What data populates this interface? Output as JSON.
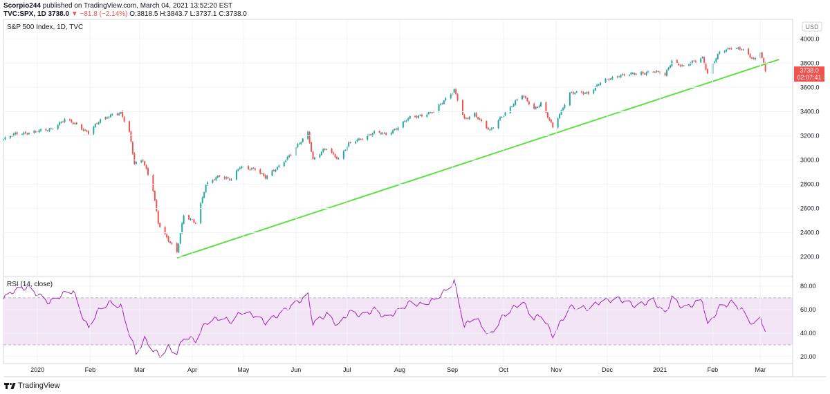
{
  "header": {
    "author": "Scorpio244",
    "published_text": "published on TradingView.com, March 04, 2021 13:52:20 EST",
    "symbol": "TVC:SPX, 1D",
    "last": "3738.0",
    "arrow": "▼",
    "change": "−81.8 (−2.14%)",
    "o_label": "O:",
    "o": "3818.5",
    "h_label": "H:",
    "h": "3843.7",
    "l_label": "L:",
    "l": "3737.1",
    "c_label": "C:",
    "c": "3738.0"
  },
  "main_title": "S&P 500 Index, 1D, TVC",
  "rsi_title": "RSI (14, close)",
  "currency": "USD",
  "price_tag": {
    "value": "3738.0",
    "countdown": "02:07:41"
  },
  "footer": {
    "brand": "TradingView"
  },
  "colors": {
    "up": "#26a69a",
    "down": "#ef5350",
    "trendline": "#5ce042",
    "rsi_line": "#9c27b0",
    "rsi_band": "#f3e5f5"
  },
  "chart_data": [
    {
      "type": "candlestick",
      "title": "S&P 500 Index, 1D, TVC",
      "ylim": [
        2050,
        4150
      ],
      "y_ticks": [
        2200,
        2400,
        2600,
        2800,
        3000,
        3200,
        3400,
        3600,
        3800,
        4000
      ],
      "y_tick_labels": [
        "2200.0",
        "2400.0",
        "2600.0",
        "2800.0",
        "3000.0",
        "3200.0",
        "3400.0",
        "3600.0",
        "3800.0",
        "4000.0"
      ],
      "x_tick_labels": [
        "2020",
        "Feb",
        "Mar",
        "Apr",
        "May",
        "Jun",
        "Jul",
        "Aug",
        "Sep",
        "Oct",
        "Nov",
        "Dec",
        "2021",
        "Feb",
        "Mar"
      ],
      "x_tick_dates": [
        "2020-01-01",
        "2020-02-01",
        "2020-03-01",
        "2020-04-01",
        "2020-05-01",
        "2020-06-01",
        "2020-07-01",
        "2020-08-01",
        "2020-09-01",
        "2020-10-01",
        "2020-11-01",
        "2020-12-01",
        "2021-01-01",
        "2021-02-01",
        "2021-03-01"
      ],
      "xlim_dates": [
        "2019-12-12",
        "2021-03-20"
      ],
      "close_path": [
        [
          "2019-12-12",
          3168
        ],
        [
          "2019-12-20",
          3221
        ],
        [
          "2019-12-31",
          3231
        ],
        [
          "2020-01-08",
          3253
        ],
        [
          "2020-01-17",
          3330
        ],
        [
          "2020-01-24",
          3295
        ],
        [
          "2020-01-31",
          3225
        ],
        [
          "2020-02-07",
          3328
        ],
        [
          "2020-02-14",
          3380
        ],
        [
          "2020-02-19",
          3386
        ],
        [
          "2020-02-24",
          3225
        ],
        [
          "2020-02-27",
          2979
        ],
        [
          "2020-03-03",
          3003
        ],
        [
          "2020-03-09",
          2746
        ],
        [
          "2020-03-12",
          2480
        ],
        [
          "2020-03-16",
          2386
        ],
        [
          "2020-03-23",
          2237
        ],
        [
          "2020-03-27",
          2541
        ],
        [
          "2020-04-03",
          2489
        ],
        [
          "2020-04-09",
          2790
        ],
        [
          "2020-04-17",
          2875
        ],
        [
          "2020-04-24",
          2837
        ],
        [
          "2020-04-29",
          2940
        ],
        [
          "2020-05-08",
          2930
        ],
        [
          "2020-05-14",
          2852
        ],
        [
          "2020-05-22",
          2955
        ],
        [
          "2020-05-29",
          3044
        ],
        [
          "2020-06-08",
          3232
        ],
        [
          "2020-06-11",
          3002
        ],
        [
          "2020-06-19",
          3098
        ],
        [
          "2020-06-26",
          3009
        ],
        [
          "2020-07-02",
          3130
        ],
        [
          "2020-07-10",
          3185
        ],
        [
          "2020-07-17",
          3224
        ],
        [
          "2020-07-24",
          3215
        ],
        [
          "2020-07-31",
          3271
        ],
        [
          "2020-08-07",
          3351
        ],
        [
          "2020-08-14",
          3373
        ],
        [
          "2020-08-21",
          3397
        ],
        [
          "2020-08-28",
          3508
        ],
        [
          "2020-09-02",
          3580
        ],
        [
          "2020-09-08",
          3331
        ],
        [
          "2020-09-14",
          3383
        ],
        [
          "2020-09-23",
          3237
        ],
        [
          "2020-10-01",
          3380
        ],
        [
          "2020-10-12",
          3534
        ],
        [
          "2020-10-19",
          3427
        ],
        [
          "2020-10-23",
          3465
        ],
        [
          "2020-10-30",
          3270
        ],
        [
          "2020-11-09",
          3550
        ],
        [
          "2020-11-20",
          3557
        ],
        [
          "2020-11-27",
          3638
        ],
        [
          "2020-12-08",
          3702
        ],
        [
          "2020-12-18",
          3709
        ],
        [
          "2020-12-28",
          3735
        ],
        [
          "2021-01-04",
          3700
        ],
        [
          "2021-01-08",
          3824
        ],
        [
          "2021-01-15",
          3768
        ],
        [
          "2021-01-26",
          3849
        ],
        [
          "2021-01-29",
          3714
        ],
        [
          "2021-02-05",
          3886
        ],
        [
          "2021-02-12",
          3934
        ],
        [
          "2021-02-18",
          3913
        ],
        [
          "2021-02-25",
          3829
        ],
        [
          "2021-03-01",
          3901
        ],
        [
          "2021-03-04",
          3738
        ]
      ],
      "trendline": {
        "start": [
          "2020-03-23",
          2192
        ],
        "end": [
          "2021-03-12",
          3830
        ]
      },
      "last_price": 3738.0
    },
    {
      "type": "line",
      "title": "RSI (14, close)",
      "ylim": [
        14,
        87
      ],
      "y_ticks": [
        20,
        40,
        60,
        80
      ],
      "y_tick_labels": [
        "20.00",
        "40.00",
        "60.00",
        "80.00"
      ],
      "band": [
        30,
        70
      ],
      "series": [
        {
          "points": [
            [
              "2019-12-12",
              69
            ],
            [
              "2019-12-18",
              76
            ],
            [
              "2019-12-26",
              79
            ],
            [
              "2020-01-02",
              72
            ],
            [
              "2020-01-08",
              66
            ],
            [
              "2020-01-17",
              74
            ],
            [
              "2020-01-22",
              76
            ],
            [
              "2020-01-27",
              56
            ],
            [
              "2020-01-31",
              44
            ],
            [
              "2020-02-05",
              58
            ],
            [
              "2020-02-12",
              66
            ],
            [
              "2020-02-19",
              63
            ],
            [
              "2020-02-24",
              40
            ],
            [
              "2020-02-28",
              23
            ],
            [
              "2020-03-04",
              35
            ],
            [
              "2020-03-09",
              26
            ],
            [
              "2020-03-13",
              21
            ],
            [
              "2020-03-18",
              28
            ],
            [
              "2020-03-23",
              23
            ],
            [
              "2020-03-27",
              37
            ],
            [
              "2020-04-03",
              34
            ],
            [
              "2020-04-09",
              49
            ],
            [
              "2020-04-17",
              53
            ],
            [
              "2020-04-24",
              50
            ],
            [
              "2020-04-30",
              58
            ],
            [
              "2020-05-08",
              55
            ],
            [
              "2020-05-14",
              49
            ],
            [
              "2020-05-22",
              56
            ],
            [
              "2020-05-29",
              63
            ],
            [
              "2020-06-08",
              72
            ],
            [
              "2020-06-11",
              48
            ],
            [
              "2020-06-19",
              56
            ],
            [
              "2020-06-26",
              46
            ],
            [
              "2020-07-02",
              58
            ],
            [
              "2020-07-10",
              55
            ],
            [
              "2020-07-17",
              60
            ],
            [
              "2020-07-24",
              53
            ],
            [
              "2020-07-31",
              59
            ],
            [
              "2020-08-07",
              66
            ],
            [
              "2020-08-14",
              64
            ],
            [
              "2020-08-21",
              68
            ],
            [
              "2020-08-28",
              76
            ],
            [
              "2020-09-02",
              84
            ],
            [
              "2020-09-08",
              46
            ],
            [
              "2020-09-14",
              54
            ],
            [
              "2020-09-23",
              38
            ],
            [
              "2020-10-01",
              55
            ],
            [
              "2020-10-12",
              67
            ],
            [
              "2020-10-19",
              52
            ],
            [
              "2020-10-23",
              56
            ],
            [
              "2020-10-30",
              38
            ],
            [
              "2020-11-09",
              62
            ],
            [
              "2020-11-20",
              61
            ],
            [
              "2020-11-27",
              67
            ],
            [
              "2020-12-08",
              69
            ],
            [
              "2020-12-18",
              63
            ],
            [
              "2020-12-28",
              68
            ],
            [
              "2021-01-04",
              56
            ],
            [
              "2021-01-08",
              70
            ],
            [
              "2021-01-15",
              61
            ],
            [
              "2021-01-26",
              68
            ],
            [
              "2021-01-29",
              46
            ],
            [
              "2021-02-05",
              62
            ],
            [
              "2021-02-12",
              66
            ],
            [
              "2021-02-18",
              60
            ],
            [
              "2021-02-25",
              46
            ],
            [
              "2021-03-01",
              55
            ],
            [
              "2021-03-04",
              39
            ]
          ]
        }
      ]
    }
  ]
}
